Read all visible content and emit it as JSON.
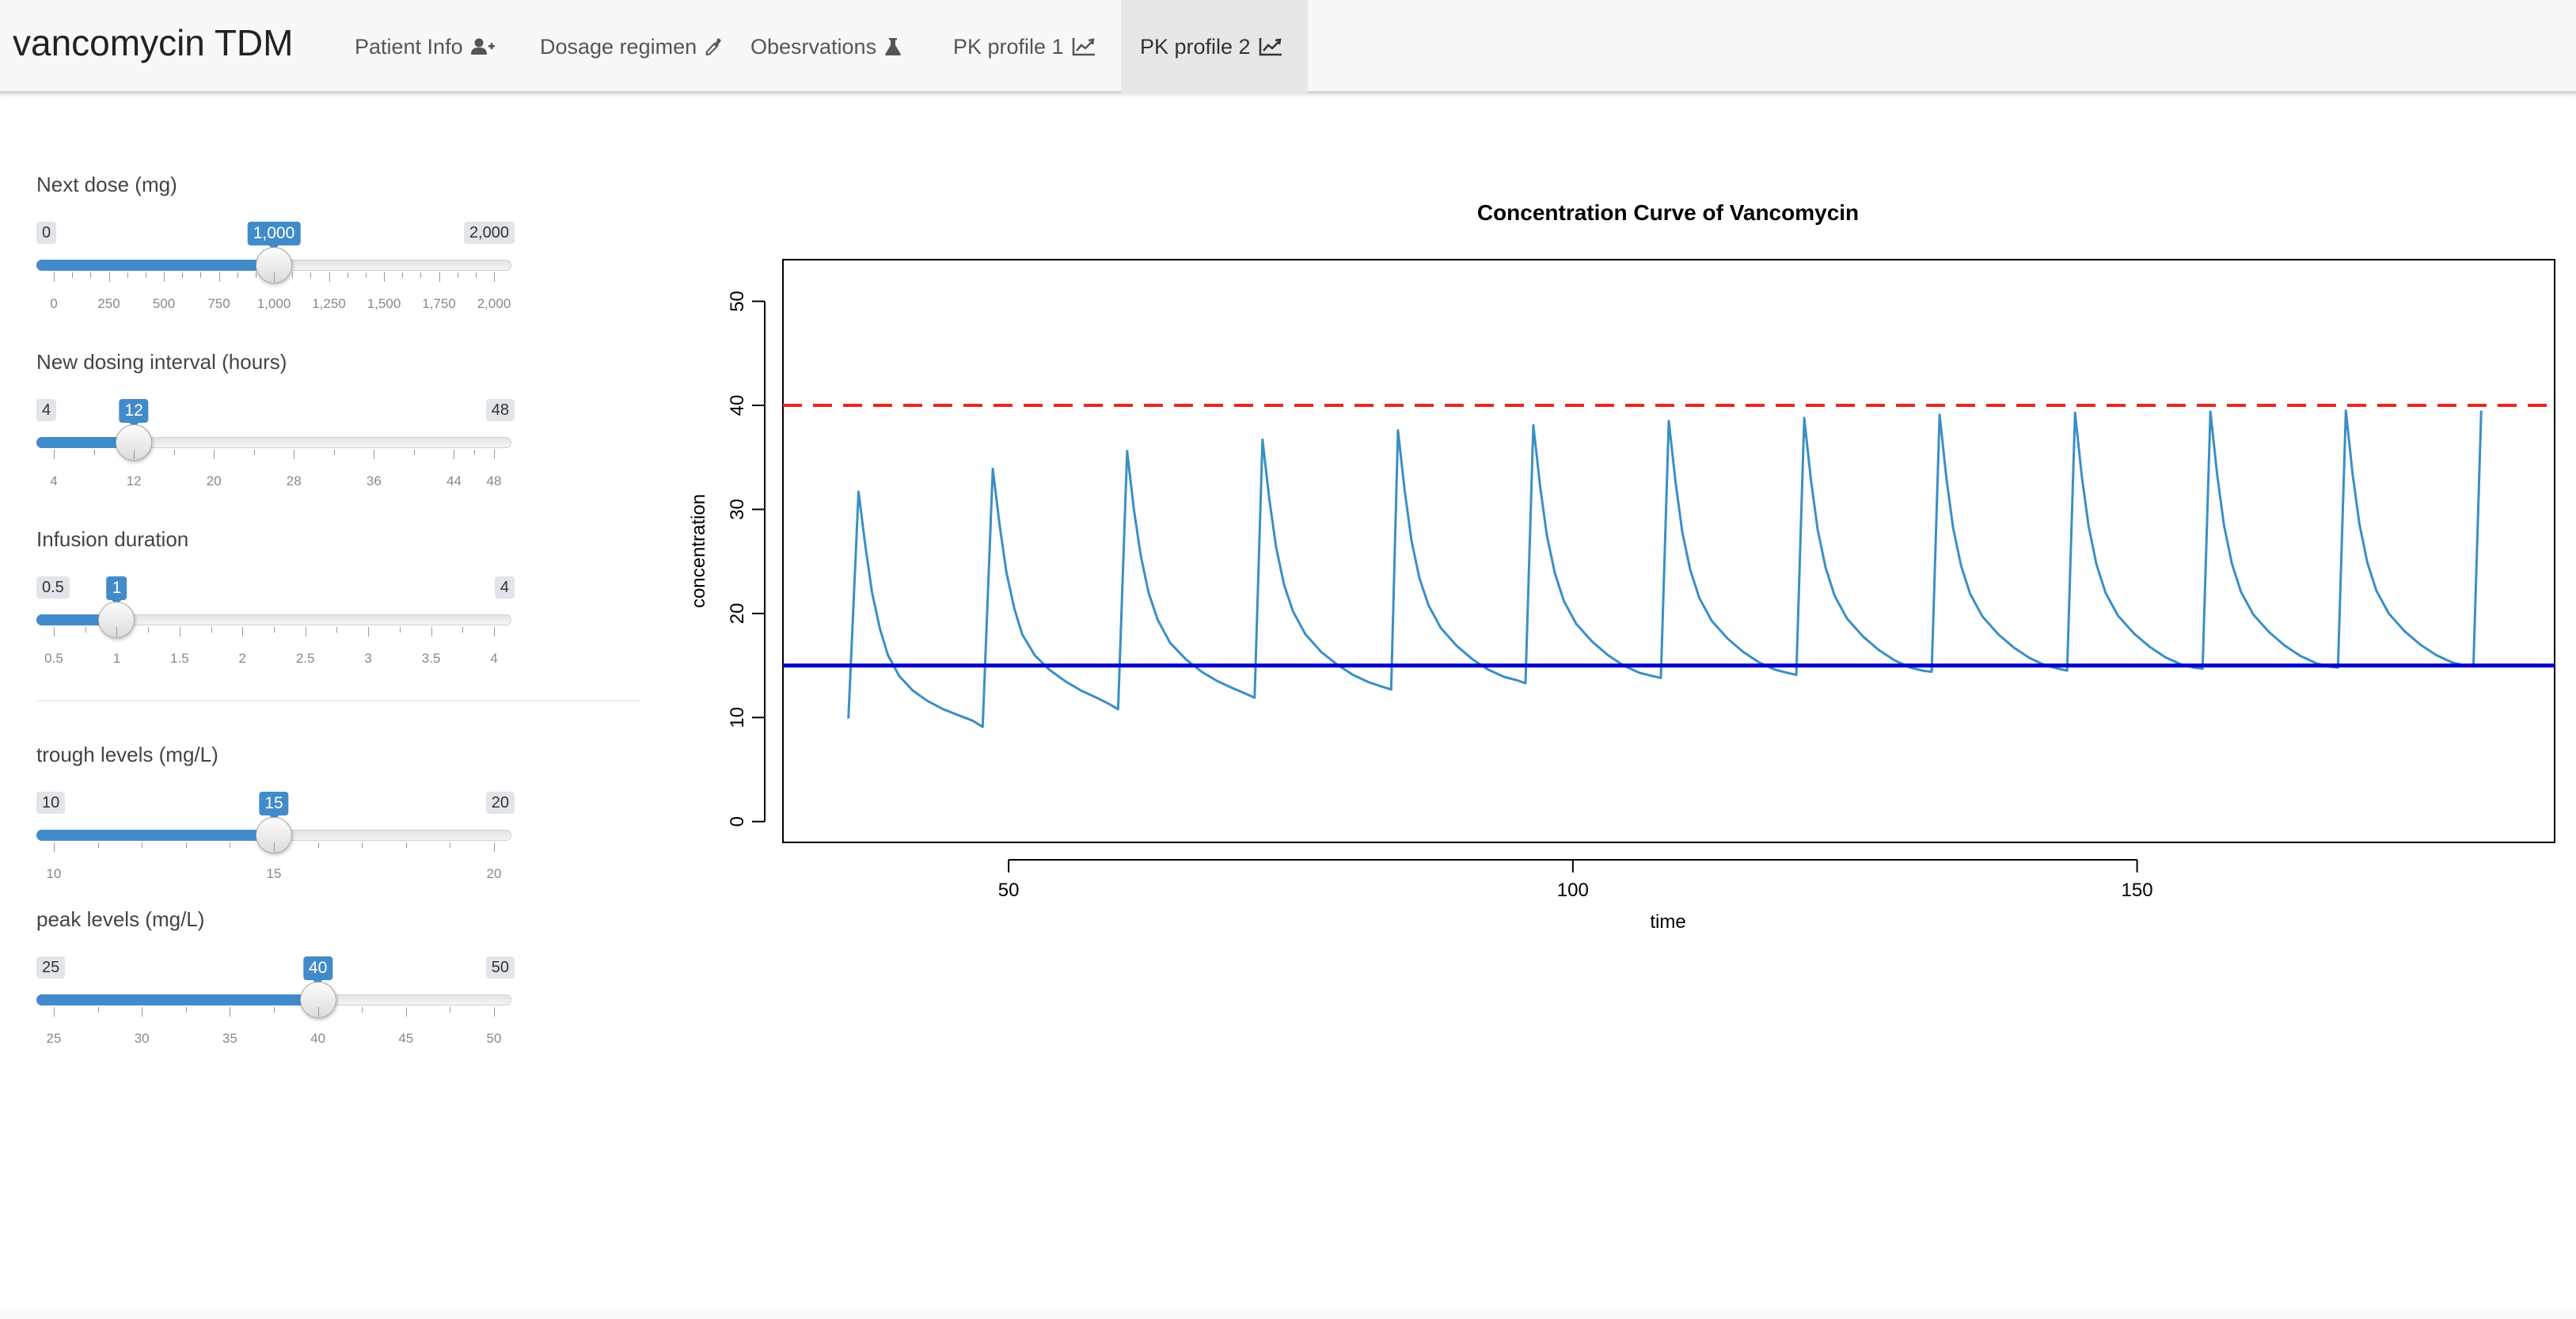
{
  "navbar": {
    "brand": "vancomycin TDM",
    "tabs": [
      {
        "label": "Patient Info",
        "icon": "user-plus-icon",
        "active": false
      },
      {
        "label": "Dosage regimen",
        "icon": "eyedropper-icon",
        "active": false
      },
      {
        "label": "Obesrvations",
        "icon": "flask-icon",
        "active": false
      },
      {
        "label": "PK profile 1",
        "icon": "line-chart-icon",
        "active": false
      },
      {
        "label": "PK profile 2",
        "icon": "line-chart-icon",
        "active": true
      }
    ]
  },
  "sidebar": {
    "sliders": [
      {
        "id": "next-dose",
        "label": "Next dose (mg)",
        "min": 0,
        "max": 2000,
        "value": 1000,
        "min_label": "0",
        "max_label": "2,000",
        "value_label": "1,000",
        "major_ticks": [
          "0",
          "250",
          "500",
          "750",
          "1,000",
          "1,250",
          "1,500",
          "1,750",
          "2,000"
        ],
        "minor_per_major": 2
      },
      {
        "id": "dosing-interval",
        "label": "New dosing interval (hours)",
        "min": 4,
        "max": 48,
        "value": 12,
        "min_label": "4",
        "max_label": "48",
        "value_label": "12",
        "major_tick_values": [
          4,
          12,
          20,
          28,
          36,
          44,
          48
        ],
        "major_ticks": [
          "4",
          "12",
          "20",
          "28",
          "36",
          "44",
          "48"
        ],
        "minor_per_major": 1
      },
      {
        "id": "infusion-duration",
        "label": "Infusion duration",
        "min": 0.5,
        "max": 4,
        "value": 1,
        "min_label": "0.5",
        "max_label": "4",
        "value_label": "1",
        "major_ticks": [
          "0.5",
          "1",
          "1.5",
          "2",
          "2.5",
          "3",
          "3.5",
          "4"
        ],
        "minor_per_major": 1
      },
      {
        "id": "trough-levels",
        "label": "trough levels (mg/L)",
        "min": 10,
        "max": 20,
        "value": 15,
        "min_label": "10",
        "max_label": "20",
        "value_label": "15",
        "major_ticks": [
          "10",
          "15",
          "20"
        ],
        "minor_per_major": 4
      },
      {
        "id": "peak-levels",
        "label": "peak levels (mg/L)",
        "min": 25,
        "max": 50,
        "value": 40,
        "min_label": "25",
        "max_label": "50",
        "value_label": "40",
        "major_ticks": [
          "25",
          "30",
          "35",
          "40",
          "45",
          "50"
        ],
        "minor_per_major": 1
      }
    ]
  },
  "chart_data": {
    "type": "line",
    "title": "Concentration Curve of Vancomycin",
    "xlabel": "time",
    "ylabel": "concentration",
    "xlim": [
      30,
      187
    ],
    "ylim": [
      -2,
      54
    ],
    "xticks": [
      50,
      100,
      150
    ],
    "yticks": [
      0,
      10,
      20,
      30,
      40,
      50
    ],
    "grid": false,
    "series": [
      {
        "style": "solid",
        "color": "#3a8fc4",
        "x": [
          35.8,
          36.7,
          37.3,
          37.9,
          38.6,
          39.3,
          40.3,
          41.5,
          42.8,
          44.2,
          45.6,
          46.8,
          47.7,
          48.6,
          49.2,
          49.8,
          50.5,
          51.2,
          52.3,
          53.6,
          55.0,
          56.4,
          57.8,
          58.9,
          59.7,
          60.5,
          61.1,
          61.7,
          62.4,
          63.2,
          64.3,
          65.7,
          67.1,
          68.5,
          69.9,
          71.0,
          71.8,
          72.5,
          73.1,
          73.7,
          74.4,
          75.2,
          76.3,
          77.7,
          79.1,
          80.5,
          81.9,
          83.0,
          83.9,
          84.5,
          85.1,
          85.7,
          86.4,
          87.2,
          88.3,
          89.7,
          91.1,
          92.5,
          93.9,
          95.0,
          95.8,
          96.5,
          97.1,
          97.7,
          98.4,
          99.2,
          100.3,
          101.7,
          103.1,
          104.5,
          105.9,
          107.0,
          107.8,
          108.5,
          109.1,
          109.7,
          110.4,
          111.2,
          112.3,
          113.7,
          115.1,
          116.5,
          117.9,
          119.0,
          119.8,
          120.5,
          121.1,
          121.7,
          122.4,
          123.2,
          124.3,
          125.7,
          127.1,
          128.5,
          129.9,
          131.0,
          131.8,
          132.5,
          133.1,
          133.7,
          134.4,
          135.2,
          136.3,
          137.7,
          139.1,
          140.5,
          141.9,
          143.0,
          143.8,
          144.5,
          145.1,
          145.7,
          146.4,
          147.2,
          148.3,
          149.7,
          151.1,
          152.5,
          153.9,
          155.0,
          155.8,
          156.5,
          157.1,
          157.7,
          158.4,
          159.2,
          160.3,
          161.7,
          163.1,
          164.5,
          165.9,
          167.0,
          167.8,
          168.5,
          169.1,
          169.7,
          170.4,
          171.2,
          172.3,
          173.7,
          175.1,
          176.5,
          177.9,
          179.0,
          179.8,
          180.5
        ],
        "y": [
          9.9,
          31.7,
          26.5,
          22.0,
          18.5,
          16.0,
          14.0,
          12.6,
          11.6,
          10.8,
          10.2,
          9.7,
          9.1,
          33.9,
          28.5,
          24.0,
          20.5,
          18.0,
          16.0,
          14.6,
          13.5,
          12.6,
          11.9,
          11.3,
          10.8,
          35.6,
          30.0,
          25.6,
          22.0,
          19.4,
          17.2,
          15.6,
          14.4,
          13.5,
          12.8,
          12.3,
          11.9,
          36.7,
          31.0,
          26.4,
          22.8,
          20.2,
          18.0,
          16.3,
          15.1,
          14.1,
          13.4,
          13.0,
          12.7,
          37.6,
          31.8,
          27.0,
          23.4,
          20.8,
          18.6,
          16.9,
          15.6,
          14.6,
          13.9,
          13.6,
          13.3,
          38.1,
          32.2,
          27.5,
          23.9,
          21.2,
          19.0,
          17.3,
          16.0,
          15.0,
          14.3,
          14.0,
          13.8,
          38.5,
          32.6,
          27.8,
          24.2,
          21.5,
          19.3,
          17.6,
          16.3,
          15.3,
          14.6,
          14.3,
          14.1,
          38.8,
          32.8,
          28.0,
          24.4,
          21.7,
          19.5,
          17.8,
          16.5,
          15.5,
          14.8,
          14.5,
          14.4,
          39.1,
          33.0,
          28.2,
          24.6,
          21.9,
          19.7,
          18.0,
          16.7,
          15.7,
          15.0,
          14.7,
          14.5,
          39.3,
          33.2,
          28.4,
          24.7,
          22.0,
          19.8,
          18.1,
          16.8,
          15.8,
          15.1,
          14.8,
          14.7,
          39.4,
          33.3,
          28.5,
          24.8,
          22.1,
          19.9,
          18.2,
          16.9,
          15.9,
          15.2,
          14.9,
          14.8,
          39.5,
          33.4,
          28.6,
          24.9,
          22.2,
          20.0,
          18.3,
          17.0,
          16.0,
          15.3,
          15.0,
          14.9,
          39.5
        ]
      },
      {
        "style": "dashed",
        "color": "#e8281e",
        "x": [
          30,
          187
        ],
        "y": [
          40,
          40
        ]
      },
      {
        "style": "solid",
        "color": "#0000d0",
        "x": [
          30,
          187
        ],
        "y": [
          15,
          15
        ]
      }
    ]
  }
}
